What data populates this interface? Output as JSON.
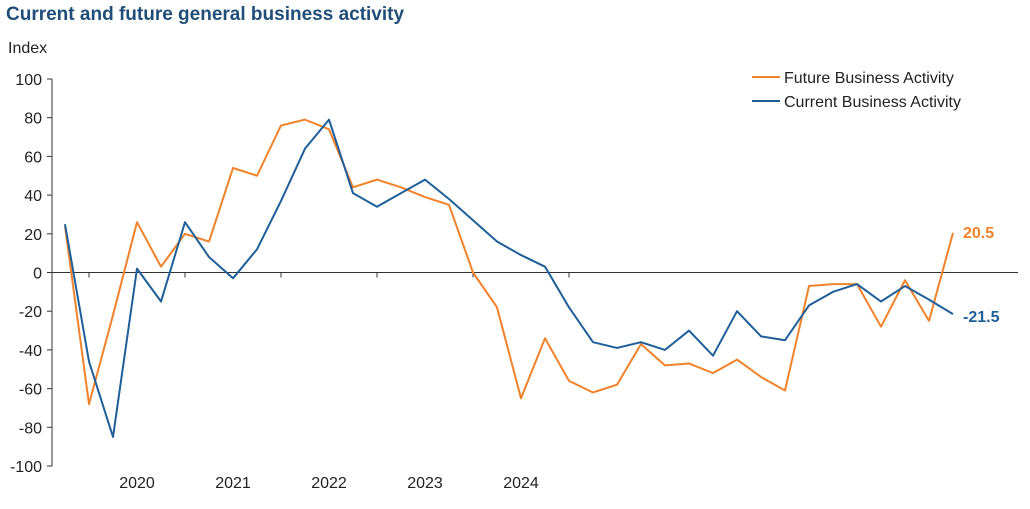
{
  "chart_data": {
    "type": "line",
    "title": "Current and future general business activity",
    "ylabel": "Index",
    "xlabel": "",
    "ylim": [
      -100,
      100
    ],
    "yticks": [
      100,
      80,
      60,
      40,
      20,
      0,
      -20,
      -40,
      -60,
      -80,
      -100
    ],
    "year_labels": [
      "2020",
      "2021",
      "2022",
      "2023",
      "2024"
    ],
    "legend_position": "top-right",
    "series": [
      {
        "name": "Future Business Activity",
        "color": "#f0822a",
        "end_label": "20.5",
        "values": [
          24,
          -68,
          -22,
          26,
          3,
          20,
          16,
          54,
          50,
          76,
          79,
          74,
          44,
          48,
          44,
          39,
          35,
          0,
          -18,
          -65,
          -34,
          -56,
          -62,
          -58,
          -37,
          -48,
          -47,
          -52,
          -45,
          -54,
          -61,
          -7,
          -6,
          -6,
          -28,
          -4,
          -25,
          20.5
        ]
      },
      {
        "name": "Current Business Activity",
        "color": "#1f5f99",
        "end_label": "-21.5",
        "values": [
          25,
          -46,
          -85,
          2,
          -15,
          26,
          8,
          -3,
          12,
          37,
          64,
          79,
          41,
          34,
          41,
          48,
          38,
          27,
          16,
          9,
          3,
          -18,
          -36,
          -39,
          -36,
          -40,
          -30,
          -43,
          -20,
          -33,
          -35,
          -17,
          -10,
          -6,
          -15,
          -7,
          -14,
          -21.5
        ]
      }
    ]
  }
}
